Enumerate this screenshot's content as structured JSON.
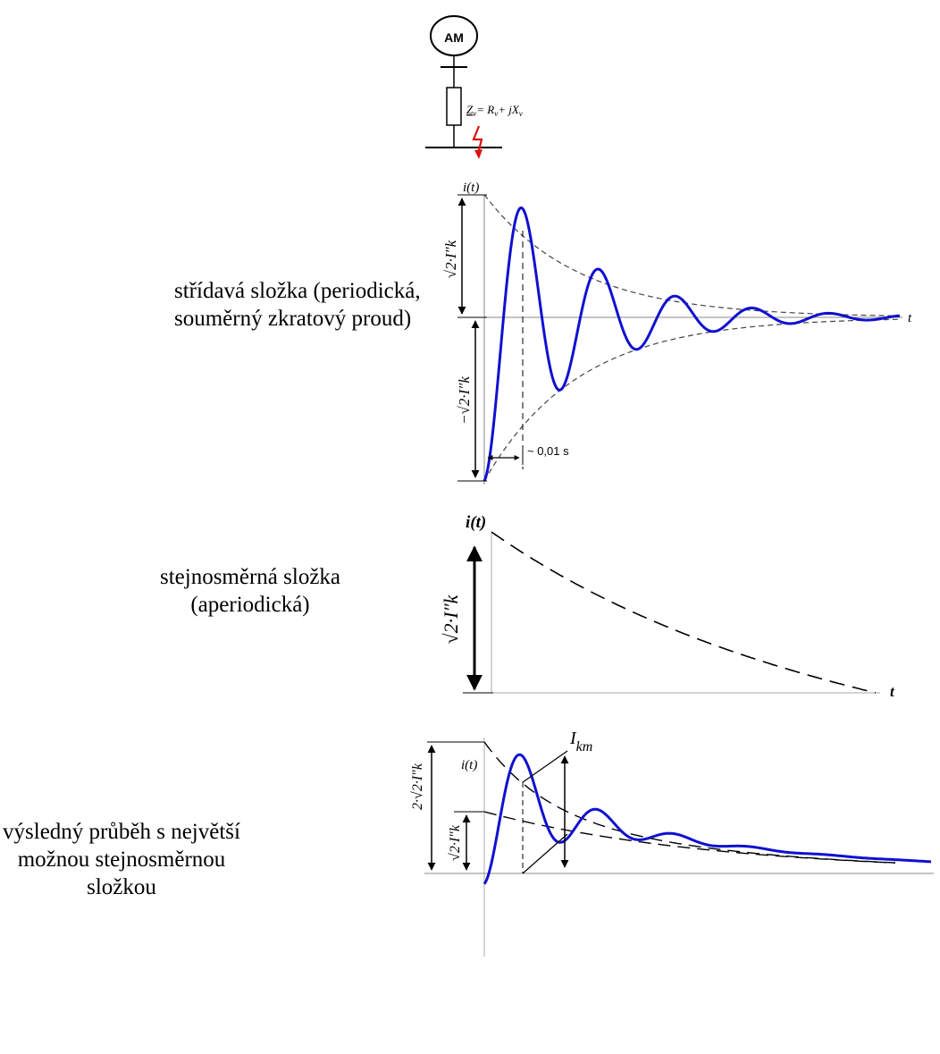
{
  "circuit": {
    "source_label": "AM",
    "impedance_symbol": "Z",
    "impedance_subscript": "v",
    "impedance_eq": "= R",
    "impedance_plus": "+ jX",
    "impedance_sub_r": "v",
    "impedance_sub_x": "v"
  },
  "sections": [
    {
      "id": "ac",
      "caption_lines": [
        "střídavá složka (periodická,",
        "souměrný zkratový proud)"
      ],
      "y_axis_label": "i(t)",
      "x_axis_label": "t",
      "amp_label_pos": "√2·I″k",
      "amp_label_neg": "−√2·I″k",
      "time_label": "~ 0,01 s"
    },
    {
      "id": "dc",
      "caption_lines": [
        "stejnosměrná složka",
        "(aperiodická)"
      ],
      "y_axis_label": "i(t)",
      "x_axis_label": "t",
      "amp_label": "√2·I″k"
    },
    {
      "id": "total",
      "caption_lines": [
        "výsledný průběh s největší",
        "možnou stejnosměrnou",
        "složkou"
      ],
      "y_axis_label": "i(t)",
      "amp_label_double": "2·√2·I″k",
      "amp_label_single": "√2·I″k",
      "peak_label": "I",
      "peak_subscript": "km"
    }
  ],
  "colors": {
    "waveform": "#1010d0",
    "fault": "#e01010",
    "envelope": "#444444"
  }
}
